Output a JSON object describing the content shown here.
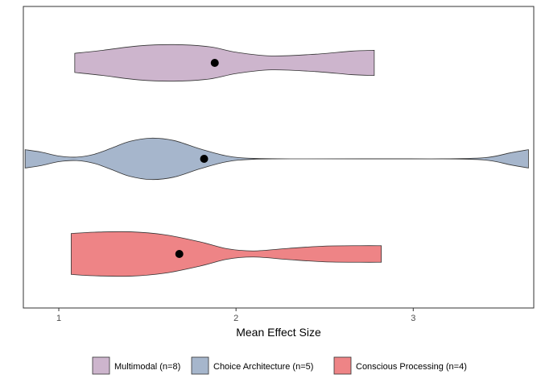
{
  "chart_data": {
    "type": "violin",
    "orientation": "horizontal",
    "title": "",
    "xlabel": "Mean Effect Size",
    "ylabel": "",
    "xlim": [
      0.8,
      3.68
    ],
    "x_ticks": [
      "1",
      "2",
      "3"
    ],
    "grid": false,
    "legend_position": "bottom",
    "series": [
      {
        "name": "Multimodal (n=8)",
        "color": "#CDB5CD",
        "mean": 1.88,
        "range": [
          1.09,
          2.78
        ],
        "density": [
          [
            1.09,
            0.44
          ],
          [
            1.25,
            0.58
          ],
          [
            1.45,
            0.78
          ],
          [
            1.65,
            0.84
          ],
          [
            1.85,
            0.74
          ],
          [
            2.0,
            0.49
          ],
          [
            2.2,
            0.32
          ],
          [
            2.45,
            0.4
          ],
          [
            2.65,
            0.54
          ],
          [
            2.78,
            0.58
          ]
        ]
      },
      {
        "name": "Choice Architecture (n=5)",
        "color": "#A6B6CC",
        "mean": 1.82,
        "range": [
          0.81,
          3.65
        ],
        "density": [
          [
            0.81,
            0.42
          ],
          [
            0.9,
            0.31
          ],
          [
            1.0,
            0.13
          ],
          [
            1.1,
            0.08
          ],
          [
            1.2,
            0.21
          ],
          [
            1.3,
            0.5
          ],
          [
            1.4,
            0.8
          ],
          [
            1.52,
            0.95
          ],
          [
            1.65,
            0.84
          ],
          [
            1.8,
            0.45
          ],
          [
            1.95,
            0.13
          ],
          [
            2.1,
            0.02
          ],
          [
            2.4,
            0.0
          ],
          [
            3.1,
            0.0
          ],
          [
            3.4,
            0.05
          ],
          [
            3.55,
            0.28
          ],
          [
            3.65,
            0.42
          ]
        ]
      },
      {
        "name": "Conscious Processing (n=4)",
        "color": "#EE8486",
        "mean": 1.68,
        "range": [
          1.07,
          2.82
        ],
        "density": [
          [
            1.07,
            0.94
          ],
          [
            1.2,
            1.0
          ],
          [
            1.4,
            1.02
          ],
          [
            1.6,
            0.88
          ],
          [
            1.8,
            0.55
          ],
          [
            1.95,
            0.24
          ],
          [
            2.1,
            0.14
          ],
          [
            2.3,
            0.26
          ],
          [
            2.5,
            0.36
          ],
          [
            2.7,
            0.38
          ],
          [
            2.82,
            0.38
          ]
        ]
      }
    ]
  }
}
